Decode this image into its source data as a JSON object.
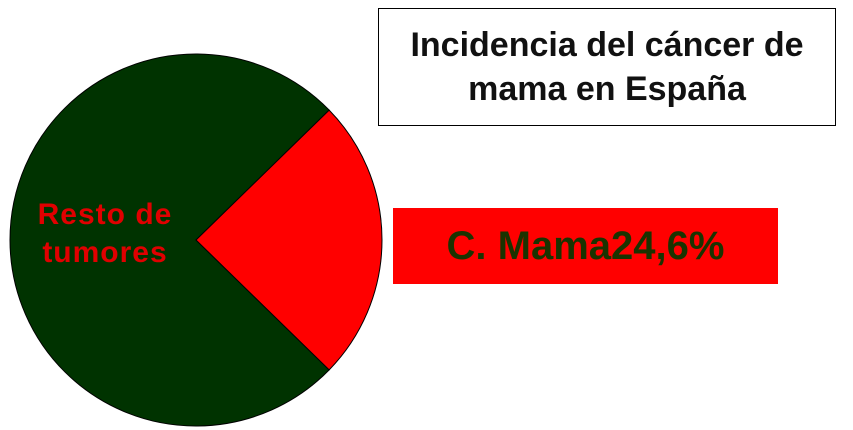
{
  "chart_data": {
    "type": "pie",
    "title": "Incidencia del cáncer de mama en España",
    "categories": [
      "Resto de tumores",
      "C. Mama"
    ],
    "values": [
      75.4,
      24.6
    ],
    "value_labels": [
      null,
      "24,6%"
    ],
    "colors": [
      "#003300",
      "#ff0000"
    ]
  }
}
